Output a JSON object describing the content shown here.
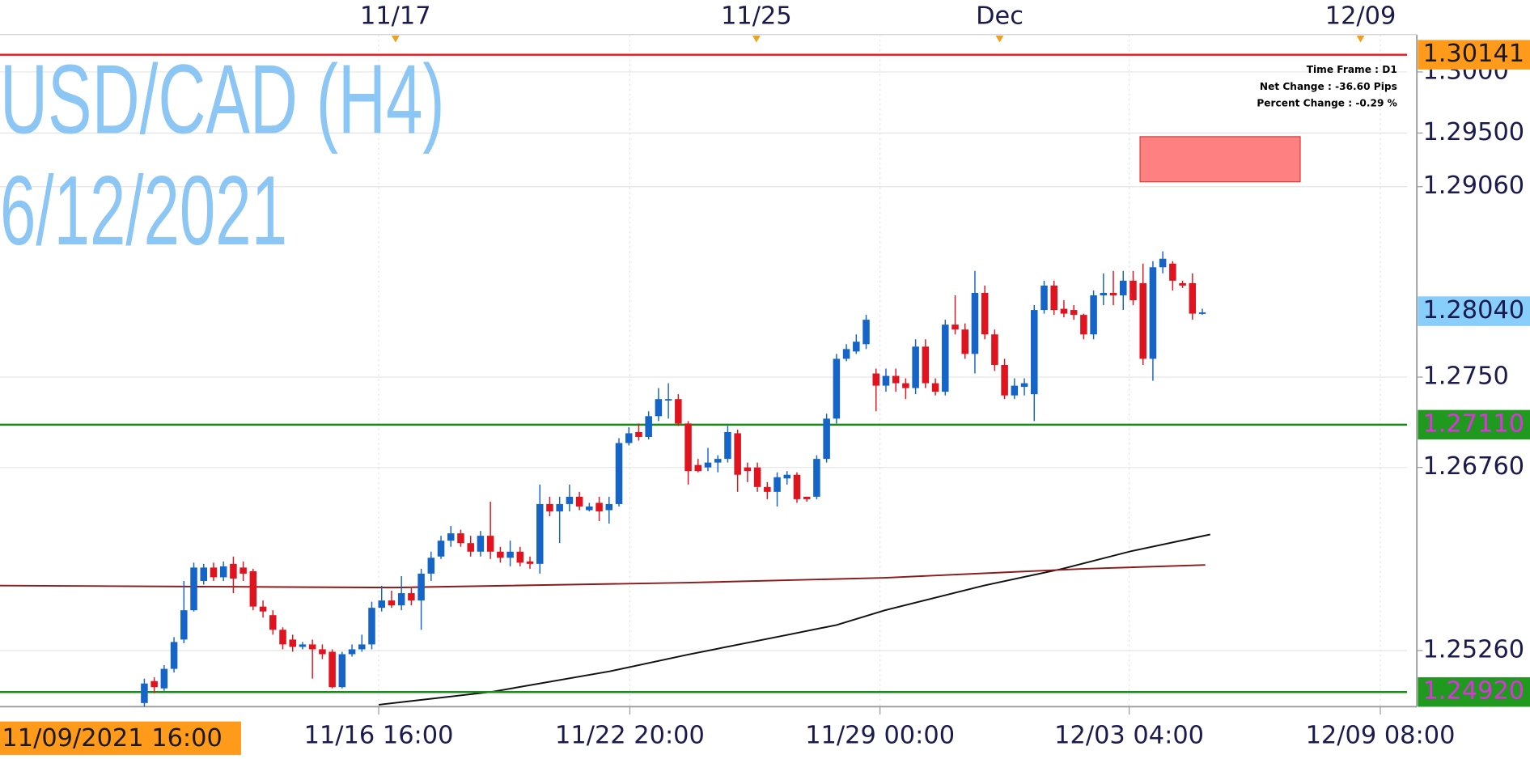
{
  "chart_data": {
    "type": "candlestick",
    "title": "USD/CAD (H4)",
    "subtitle": "6/12/2021",
    "info": [
      "Time Frame : D1",
      "Net Change : -36.60 Pips",
      "Percent Change : -0.29 %"
    ],
    "up_color": "#1565c8",
    "down_color": "#e0141e",
    "open": [
      1.2483,
      1.2501,
      1.2495,
      1.2511,
      1.2535,
      1.2559,
      1.2583,
      1.2594,
      1.2586,
      1.2597,
      1.2594,
      1.2591,
      1.2562,
      1.2555,
      1.2543,
      1.2535,
      1.2529,
      1.2531,
      1.2527,
      1.2525,
      1.2496,
      1.2523,
      1.2527,
      1.2531,
      1.2561,
      1.2567,
      1.2563,
      1.2573,
      1.2567,
      1.2589,
      1.2603,
      1.2616,
      1.2622,
      1.2614,
      1.2607,
      1.262,
      1.2607,
      1.2602,
      1.2607,
      1.2599,
      1.2597,
      1.2646,
      1.264,
      1.2646,
      1.2652,
      1.2641,
      1.2647,
      1.2641,
      1.2646,
      1.2696,
      1.2705,
      1.2701,
      1.2718,
      1.2731,
      1.2732,
      1.2712,
      1.2678,
      1.2676,
      1.268,
      1.2683,
      1.2704,
      1.2676,
      1.2676,
      1.266,
      1.2656,
      1.2667,
      1.267,
      1.2652,
      1.2652,
      1.2683,
      1.2716,
      1.2765,
      1.2771,
      1.2777,
      1.2753,
      1.2743,
      1.2751,
      1.2745,
      1.2741,
      1.2775,
      1.2745,
      1.2738,
      1.2793,
      1.2789,
      1.2769,
      1.2819,
      1.2785,
      1.276,
      1.2735,
      1.2742,
      1.2736,
      1.2805,
      1.2825,
      1.2806,
      1.2805,
      1.2801,
      1.2785,
      1.2817,
      1.2819,
      1.2817,
      1.2829,
      1.2827,
      1.2765,
      1.284,
      1.2843,
      1.2827,
      1.2827,
      1.2802
    ],
    "high": [
      1.2503,
      1.2504,
      1.2514,
      1.2537,
      1.2583,
      1.2598,
      1.2597,
      1.2598,
      1.2599,
      1.2603,
      1.2599,
      1.2593,
      1.2567,
      1.2559,
      1.2545,
      1.2539,
      1.2533,
      1.2535,
      1.2531,
      1.2527,
      1.2525,
      1.2531,
      1.2539,
      1.2566,
      1.2579,
      1.2575,
      1.2587,
      1.2577,
      1.2593,
      1.2607,
      1.262,
      1.2628,
      1.2625,
      1.262,
      1.2624,
      1.2648,
      1.2611,
      1.2616,
      1.2611,
      1.2603,
      1.2662,
      1.2652,
      1.2652,
      1.2662,
      1.2656,
      1.2647,
      1.2652,
      1.2652,
      1.27,
      1.2709,
      1.2712,
      1.2722,
      1.2741,
      1.2745,
      1.2736,
      1.2714,
      1.2683,
      1.2692,
      1.2686,
      1.271,
      1.2707,
      1.268,
      1.268,
      1.2664,
      1.2672,
      1.2673,
      1.2672,
      1.2652,
      1.2686,
      1.272,
      1.2769,
      1.2777,
      1.2785,
      1.2801,
      1.2757,
      1.2757,
      1.2757,
      1.2749,
      1.2781,
      1.2781,
      1.2749,
      1.2797,
      1.2817,
      1.2794,
      1.2837,
      1.2825,
      1.2789,
      1.2765,
      1.2749,
      1.2749,
      1.2809,
      1.2829,
      1.2829,
      1.2813,
      1.2809,
      1.2802,
      1.2821,
      1.2835,
      1.2837,
      1.2837,
      1.2837,
      1.2843,
      1.2845,
      1.2853,
      1.2845,
      1.2829,
      1.2835,
      1.2806
    ],
    "low": [
      1.248,
      1.2491,
      1.2493,
      1.2508,
      1.2532,
      1.2558,
      1.258,
      1.2583,
      1.2583,
      1.2573,
      1.2583,
      1.2559,
      1.2553,
      1.2539,
      1.2527,
      1.2525,
      1.2527,
      1.2503,
      1.2519,
      1.2495,
      1.2495,
      1.2521,
      1.2525,
      1.2527,
      1.2558,
      1.2561,
      1.2559,
      1.2563,
      1.2543,
      1.2583,
      1.2601,
      1.2611,
      1.2611,
      1.2603,
      1.2603,
      1.2601,
      1.2598,
      1.2595,
      1.2595,
      1.2593,
      1.2589,
      1.2636,
      1.2614,
      1.264,
      1.2641,
      1.264,
      1.2632,
      1.263,
      1.2644,
      1.2694,
      1.2698,
      1.2699,
      1.2714,
      1.2716,
      1.271,
      1.2662,
      1.2672,
      1.2673,
      1.2672,
      1.268,
      1.2656,
      1.2664,
      1.2656,
      1.265,
      1.2644,
      1.2662,
      1.2647,
      1.2648,
      1.265,
      1.268,
      1.2712,
      1.2763,
      1.2769,
      1.2773,
      1.2722,
      1.2738,
      1.2738,
      1.2732,
      1.2736,
      1.2741,
      1.2735,
      1.2735,
      1.2785,
      1.2765,
      1.2753,
      1.2781,
      1.2755,
      1.2732,
      1.2732,
      1.2735,
      1.2714,
      1.2802,
      1.2801,
      1.2799,
      1.2797,
      1.2781,
      1.2781,
      1.2809,
      1.2809,
      1.2805,
      1.2809,
      1.276,
      1.2747,
      1.2835,
      1.2821,
      1.2823,
      1.2797,
      1.2801
    ],
    "close": [
      1.2499,
      1.2496,
      1.2511,
      1.2533,
      1.2559,
      1.2594,
      1.2594,
      1.2586,
      1.2595,
      1.2585,
      1.2589,
      1.2562,
      1.2558,
      1.2543,
      1.2531,
      1.2529,
      1.2531,
      1.2527,
      1.2523,
      1.2496,
      1.2523,
      1.2527,
      1.2531,
      1.2561,
      1.2567,
      1.2563,
      1.2573,
      1.2567,
      1.2589,
      1.2602,
      1.2616,
      1.2622,
      1.2614,
      1.2607,
      1.262,
      1.2607,
      1.2602,
      1.2607,
      1.2598,
      1.2597,
      1.2646,
      1.264,
      1.2646,
      1.2652,
      1.2644,
      1.2644,
      1.264,
      1.2646,
      1.2696,
      1.2704,
      1.2701,
      1.2718,
      1.2732,
      1.2732,
      1.2712,
      1.2673,
      1.2673,
      1.268,
      1.2683,
      1.2705,
      1.267,
      1.2673,
      1.266,
      1.2656,
      1.2668,
      1.267,
      1.265,
      1.265,
      1.2683,
      1.2716,
      1.2765,
      1.2773,
      1.2779,
      1.2797,
      1.2743,
      1.2751,
      1.2745,
      1.2741,
      1.2775,
      1.2745,
      1.2738,
      1.2793,
      1.2789,
      1.2769,
      1.2819,
      1.2785,
      1.276,
      1.2735,
      1.2743,
      1.2745,
      1.2805,
      1.2825,
      1.2805,
      1.2802,
      1.2801,
      1.2785,
      1.2817,
      1.2819,
      1.2817,
      1.2829,
      1.2813,
      1.2765,
      1.284,
      1.2847,
      1.2829,
      1.2825,
      1.2802,
      1.2803
    ],
    "xlim": [
      -14.6,
      127.7
    ],
    "ylim": [
      1.248,
      1.30306
    ],
    "xticks": [
      {
        "value": 23.7,
        "label": "11/16 16:00"
      },
      {
        "value": 49.1,
        "label": "11/22 20:00"
      },
      {
        "value": 74.4,
        "label": "11/29 00:00"
      },
      {
        "value": 99.6,
        "label": "12/03 04:00"
      },
      {
        "value": 125.0,
        "label": "12/09 08:00"
      }
    ],
    "top_xticks": [
      {
        "value": 25.4,
        "label": "11/17"
      },
      {
        "value": 61.9,
        "label": "11/25"
      },
      {
        "value": 86.5,
        "label": "Dec"
      },
      {
        "value": 123.0,
        "label": "12/09"
      }
    ],
    "yticks": [
      {
        "value": 1.3,
        "label": "1.3000"
      },
      {
        "value": 1.295,
        "label": "1.29500"
      },
      {
        "value": 1.2906,
        "label": "1.29060"
      },
      {
        "value": 1.275,
        "label": "1.2750"
      },
      {
        "value": 1.2676,
        "label": "1.26760"
      },
      {
        "value": 1.2526,
        "label": "1.25260"
      }
    ],
    "grid": true,
    "x_cursor_label": "11/09/2021 16:00",
    "lines": [
      {
        "color": "#111111",
        "x": [
          23.7,
          35.1,
          47.1,
          55.0,
          65.0,
          70.0,
          74.9,
          84.9,
          92.8,
          99.8,
          107.8
        ],
        "values": [
          1.24816,
          1.24921,
          1.2509,
          1.25227,
          1.25388,
          1.25469,
          1.2559,
          1.25792,
          1.25929,
          1.26074,
          1.26211
        ]
      },
      {
        "color": "#8b1a1a",
        "x": [
          -14.6,
          25.2,
          55.0,
          74.9,
          94.8,
          107.3
        ],
        "values": [
          1.25792,
          1.25776,
          1.25816,
          1.25856,
          1.25929,
          1.25961
        ]
      }
    ],
    "hlines": [
      {
        "value": 1.30141,
        "color": "#e8141e",
        "label_bg": "#ff9a1a",
        "label_color": "#1a1a1a"
      },
      {
        "value": 1.2711,
        "label": "1.27110",
        "color": "#1a8a1a",
        "label_bg": "#1f9a1f",
        "label_color": "#e030e0"
      },
      {
        "value": 1.2492,
        "label": "1.24920",
        "color": "#1a8a1a",
        "label_bg": "#1f9a1f",
        "label_color": "#e030e0"
      }
    ],
    "current_price": {
      "value": 1.2804,
      "label": "1.28040",
      "label_bg": "#87cefa",
      "label_color": "#1a1a4e"
    },
    "zones": [
      {
        "x": [
          100.7,
          116.9
        ],
        "y": [
          1.291,
          1.2947
        ],
        "color": "#ff8080"
      }
    ]
  }
}
